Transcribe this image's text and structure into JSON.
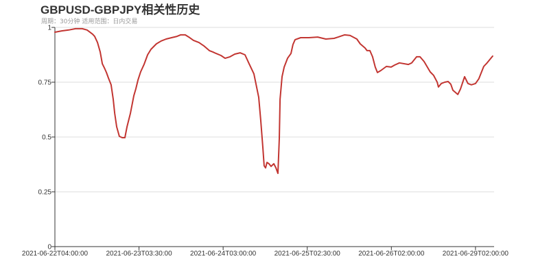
{
  "chart_data": {
    "type": "line",
    "title": "GBPUSD-GBPJPY相关性历史",
    "subtitle": "周期：30分钟 适用范围：日内交易",
    "xlabel": "",
    "ylabel": "",
    "x_axis_type": "category (30-minute bars)",
    "xlim": [
      0,
      245.4
    ],
    "x_ticks": [
      {
        "index": 0,
        "label": "2021-06-22T04:00:00"
      },
      {
        "index": 47,
        "label": "2021-06-23T03:30:00"
      },
      {
        "index": 94,
        "label": "2021-06-24T03:00:00"
      },
      {
        "index": 141,
        "label": "2021-06-25T02:30:00"
      },
      {
        "index": 188,
        "label": "2021-06-26T02:00:00"
      },
      {
        "index": 235,
        "label": "2021-06-29T02:00:00"
      }
    ],
    "ylim": [
      0,
      1
    ],
    "y_ticks": [
      {
        "value": 0,
        "label": "0"
      },
      {
        "value": 0.25,
        "label": "0.25"
      },
      {
        "value": 0.5,
        "label": "0.5"
      },
      {
        "value": 0.75,
        "label": "0.75"
      },
      {
        "value": 1,
        "label": "1"
      }
    ],
    "grid": "horizontal",
    "legend": "none",
    "series_color": "#c23531",
    "points": [
      [
        0,
        0.978
      ],
      [
        3.8,
        0.984
      ],
      [
        7.7,
        0.988
      ],
      [
        11.5,
        0.994
      ],
      [
        15.3,
        0.994
      ],
      [
        18,
        0.988
      ],
      [
        21.1,
        0.969
      ],
      [
        22.2,
        0.959
      ],
      [
        23.8,
        0.931
      ],
      [
        25.3,
        0.888
      ],
      [
        26.5,
        0.834
      ],
      [
        27.6,
        0.816
      ],
      [
        28.8,
        0.794
      ],
      [
        29.9,
        0.769
      ],
      [
        31.4,
        0.738
      ],
      [
        32.6,
        0.672
      ],
      [
        33.4,
        0.609
      ],
      [
        34.5,
        0.547
      ],
      [
        36,
        0.503
      ],
      [
        37.6,
        0.497
      ],
      [
        39.1,
        0.497
      ],
      [
        40.3,
        0.547
      ],
      [
        42.2,
        0.609
      ],
      [
        44.1,
        0.688
      ],
      [
        45.2,
        0.719
      ],
      [
        46.4,
        0.759
      ],
      [
        47.9,
        0.797
      ],
      [
        49.8,
        0.831
      ],
      [
        51.8,
        0.875
      ],
      [
        53.7,
        0.9
      ],
      [
        56.7,
        0.925
      ],
      [
        59.4,
        0.938
      ],
      [
        62.1,
        0.947
      ],
      [
        65.2,
        0.953
      ],
      [
        68.2,
        0.959
      ],
      [
        70.2,
        0.966
      ],
      [
        72.8,
        0.966
      ],
      [
        74.8,
        0.956
      ],
      [
        77.4,
        0.941
      ],
      [
        80.5,
        0.931
      ],
      [
        83.2,
        0.916
      ],
      [
        86.3,
        0.894
      ],
      [
        88.2,
        0.888
      ],
      [
        90.1,
        0.881
      ],
      [
        92.8,
        0.872
      ],
      [
        95.1,
        0.859
      ],
      [
        97.8,
        0.866
      ],
      [
        100.5,
        0.878
      ],
      [
        103.5,
        0.884
      ],
      [
        106.2,
        0.875
      ],
      [
        108.5,
        0.834
      ],
      [
        111.2,
        0.788
      ],
      [
        113.9,
        0.681
      ],
      [
        115,
        0.578
      ],
      [
        116.2,
        0.453
      ],
      [
        116.9,
        0.369
      ],
      [
        117.7,
        0.359
      ],
      [
        118.5,
        0.384
      ],
      [
        119.6,
        0.378
      ],
      [
        120.8,
        0.366
      ],
      [
        122.3,
        0.378
      ],
      [
        123.5,
        0.359
      ],
      [
        124.6,
        0.334
      ],
      [
        125.4,
        0.494
      ],
      [
        125.8,
        0.672
      ],
      [
        126.9,
        0.775
      ],
      [
        128.1,
        0.819
      ],
      [
        130,
        0.859
      ],
      [
        131.9,
        0.881
      ],
      [
        133,
        0.922
      ],
      [
        134.2,
        0.944
      ],
      [
        137.3,
        0.953
      ],
      [
        141.9,
        0.953
      ],
      [
        146.8,
        0.956
      ],
      [
        151.4,
        0.947
      ],
      [
        156,
        0.95
      ],
      [
        158.3,
        0.956
      ],
      [
        161.8,
        0.966
      ],
      [
        164.9,
        0.963
      ],
      [
        168.7,
        0.947
      ],
      [
        170.6,
        0.925
      ],
      [
        173.3,
        0.906
      ],
      [
        174.4,
        0.894
      ],
      [
        176,
        0.894
      ],
      [
        177.5,
        0.866
      ],
      [
        179,
        0.819
      ],
      [
        180.2,
        0.794
      ],
      [
        182.1,
        0.803
      ],
      [
        185.2,
        0.822
      ],
      [
        187.9,
        0.819
      ],
      [
        189.8,
        0.828
      ],
      [
        192.5,
        0.838
      ],
      [
        197.5,
        0.831
      ],
      [
        199.4,
        0.838
      ],
      [
        202.1,
        0.866
      ],
      [
        204,
        0.866
      ],
      [
        206.3,
        0.844
      ],
      [
        209.7,
        0.797
      ],
      [
        211.6,
        0.781
      ],
      [
        213.6,
        0.75
      ],
      [
        214.3,
        0.728
      ],
      [
        215.9,
        0.744
      ],
      [
        217.8,
        0.75
      ],
      [
        219.7,
        0.753
      ],
      [
        221.2,
        0.741
      ],
      [
        222.4,
        0.713
      ],
      [
        225.1,
        0.694
      ],
      [
        226.6,
        0.719
      ],
      [
        228.9,
        0.775
      ],
      [
        230.8,
        0.744
      ],
      [
        232.7,
        0.738
      ],
      [
        235,
        0.744
      ],
      [
        236.9,
        0.766
      ],
      [
        239.6,
        0.822
      ],
      [
        241.5,
        0.838
      ],
      [
        244.6,
        0.869
      ]
    ]
  }
}
